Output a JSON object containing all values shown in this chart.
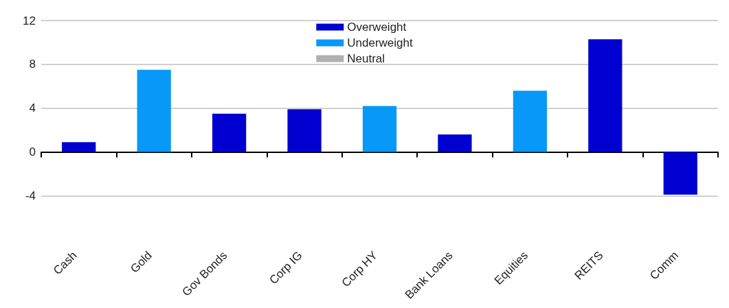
{
  "chart_data": {
    "type": "bar",
    "categories": [
      "Cash",
      "Gold",
      "Gov Bonds",
      "Corp IG",
      "Corp HY",
      "Bank Loans",
      "Equities",
      "REITS",
      "Comm"
    ],
    "series": [
      {
        "name": "Overweight",
        "color": "#0000d0",
        "values": [
          0.9,
          null,
          3.5,
          3.9,
          null,
          1.6,
          null,
          10.3,
          -3.9
        ]
      },
      {
        "name": "Underweight",
        "color": "#0898f8",
        "values": [
          null,
          7.5,
          null,
          null,
          4.2,
          null,
          5.6,
          null,
          null
        ]
      },
      {
        "name": "Neutral",
        "color": "#b0b0b0",
        "values": [
          null,
          null,
          null,
          null,
          null,
          null,
          null,
          null,
          null
        ]
      }
    ],
    "ylim": [
      -4,
      12
    ],
    "yticks": [
      -4,
      0,
      4,
      8,
      12
    ],
    "grid": "y",
    "legend": "top"
  }
}
